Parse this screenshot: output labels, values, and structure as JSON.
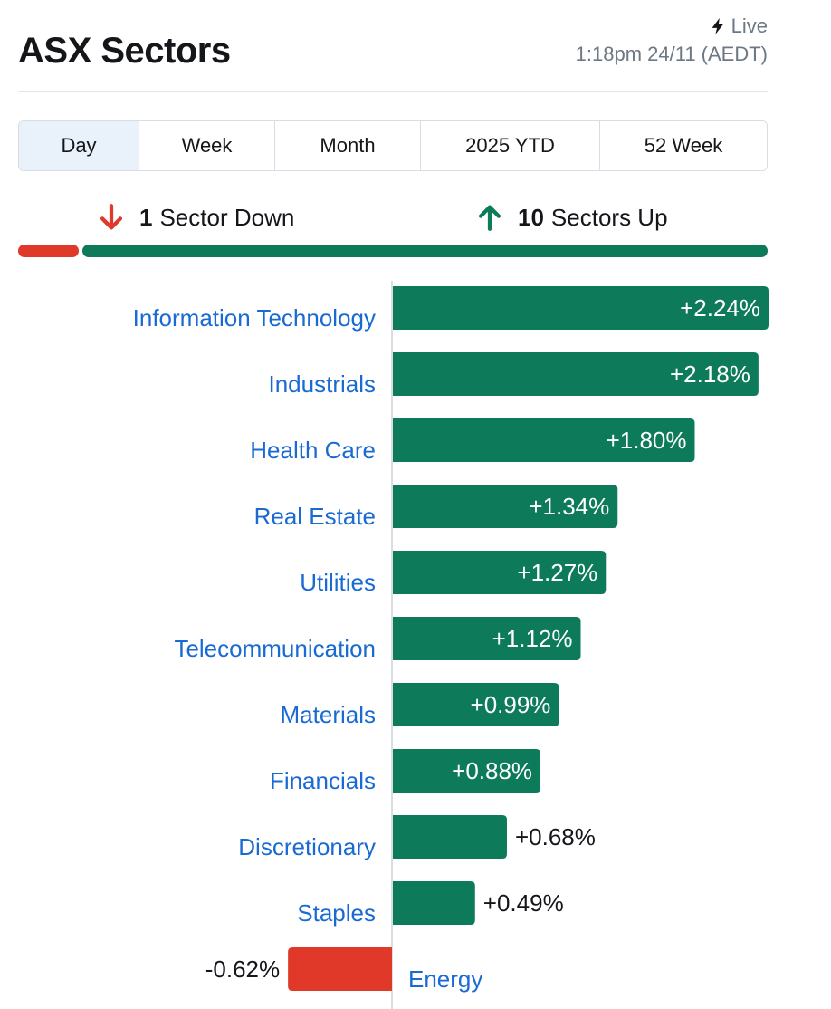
{
  "header": {
    "title": "ASX Sectors",
    "live_label": "Live",
    "timestamp": "1:18pm 24/11 (AEDT)"
  },
  "tabs": [
    {
      "label": "Day",
      "active": true
    },
    {
      "label": "Week",
      "active": false
    },
    {
      "label": "Month",
      "active": false
    },
    {
      "label": "2025 YTD",
      "active": false
    },
    {
      "label": "52 Week",
      "active": false
    }
  ],
  "summary": {
    "down_count": "1",
    "down_text": "Sector Down",
    "up_count": "10",
    "up_text": "Sectors Up",
    "down_color": "#e0392a",
    "up_color": "#0d7b5a"
  },
  "colors": {
    "positive": "#0d7b5a",
    "negative": "#e0392a",
    "label": "#1a6ad4"
  },
  "chart_data": {
    "type": "bar",
    "orientation": "horizontal",
    "categories": [
      "Information Technology",
      "Industrials",
      "Health Care",
      "Real Estate",
      "Utilities",
      "Telecommunication",
      "Materials",
      "Financials",
      "Discretionary",
      "Staples",
      "Energy"
    ],
    "values": [
      2.24,
      2.18,
      1.8,
      1.34,
      1.27,
      1.12,
      0.99,
      0.88,
      0.68,
      0.49,
      -0.62
    ],
    "value_labels": [
      "+2.24%",
      "+2.18%",
      "+1.80%",
      "+1.34%",
      "+1.27%",
      "+1.12%",
      "+0.99%",
      "+0.88%",
      "+0.68%",
      "+0.49%",
      "-0.62%"
    ],
    "unit": "%"
  }
}
